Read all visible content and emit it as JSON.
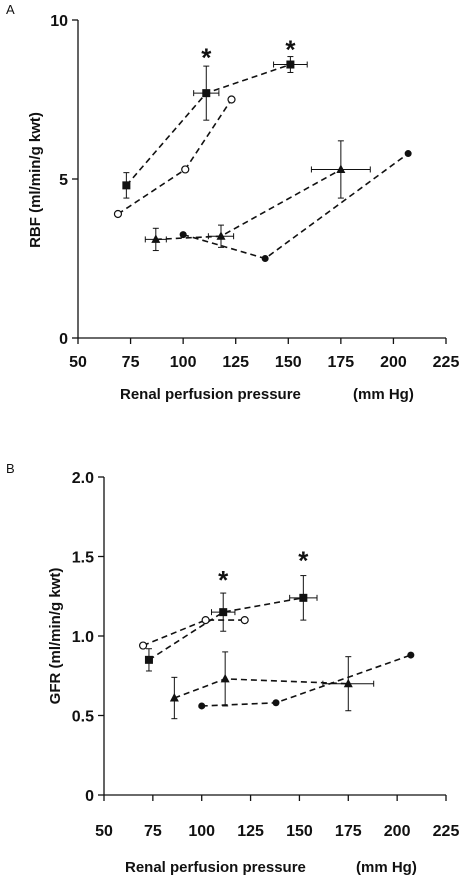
{
  "chart_data": [
    {
      "type": "scatter",
      "panel_label": "A",
      "ylabel": "RBF (ml/min/g kwt)",
      "xlabel": "Renal perfusion pressure",
      "xunit": "(mm Hg)",
      "xlim": [
        50,
        225
      ],
      "ylim": [
        0,
        10
      ],
      "x_ticks": [
        50,
        75,
        100,
        125,
        150,
        175,
        200,
        225
      ],
      "y_ticks": [
        0,
        5,
        10
      ],
      "grid": false,
      "legend": "none",
      "series": [
        {
          "marker": "square",
          "points": [
            {
              "x": 73,
              "y": 4.8,
              "yerr": 0.4
            },
            {
              "x": 111,
              "y": 7.7,
              "yerr": 0.85,
              "xerr": 6
            },
            {
              "x": 151,
              "y": 8.6,
              "yerr": 0.25,
              "xerr": 8
            }
          ]
        },
        {
          "marker": "open-circle",
          "points": [
            {
              "x": 69,
              "y": 3.9
            },
            {
              "x": 101,
              "y": 5.3
            },
            {
              "x": 123,
              "y": 7.5
            }
          ]
        },
        {
          "marker": "triangle",
          "points": [
            {
              "x": 87,
              "y": 3.1,
              "yerr": 0.35,
              "xerr": 5
            },
            {
              "x": 118,
              "y": 3.2,
              "yerr": 0.35,
              "xerr": 6
            },
            {
              "x": 175,
              "y": 5.3,
              "yerr": 0.9,
              "xerr": 14
            }
          ]
        },
        {
          "marker": "filled-circle",
          "points": [
            {
              "x": 100,
              "y": 3.25
            },
            {
              "x": 139,
              "y": 2.5
            },
            {
              "x": 207,
              "y": 5.8
            }
          ]
        }
      ],
      "annotations": [
        {
          "text": "*",
          "x": 111,
          "y": 8.85
        },
        {
          "text": "*",
          "x": 151,
          "y": 9.1
        }
      ]
    },
    {
      "type": "scatter",
      "panel_label": "B",
      "ylabel": "GFR (ml/min/g kwt)",
      "xlabel": "Renal perfusion pressure",
      "xunit": "(mm Hg)",
      "xlim": [
        50,
        225
      ],
      "ylim": [
        0,
        2.0
      ],
      "x_ticks": [
        50,
        75,
        100,
        125,
        150,
        175,
        200,
        225
      ],
      "y_ticks": [
        0,
        0.5,
        1.0,
        1.5,
        2.0
      ],
      "y_tick_labels": [
        "0",
        "0.5",
        "1.0",
        "1.5",
        "2.0"
      ],
      "grid": false,
      "legend": "none",
      "series": [
        {
          "marker": "square",
          "points": [
            {
              "x": 73,
              "y": 0.85,
              "yerr": 0.07
            },
            {
              "x": 111,
              "y": 1.15,
              "yerr": 0.12,
              "xerr": 6
            },
            {
              "x": 152,
              "y": 1.24,
              "yerr": 0.14,
              "xerr": 7
            }
          ]
        },
        {
          "marker": "open-circle",
          "points": [
            {
              "x": 70,
              "y": 0.94
            },
            {
              "x": 102,
              "y": 1.1
            },
            {
              "x": 122,
              "y": 1.1
            }
          ]
        },
        {
          "marker": "triangle",
          "points": [
            {
              "x": 86,
              "y": 0.61,
              "yerr": 0.13
            },
            {
              "x": 112,
              "y": 0.73,
              "yerr": 0.17
            },
            {
              "x": 175,
              "y": 0.7,
              "yerr": 0.17,
              "xerr": 13
            }
          ]
        },
        {
          "marker": "filled-circle",
          "points": [
            {
              "x": 100,
              "y": 0.56
            },
            {
              "x": 138,
              "y": 0.58
            },
            {
              "x": 207,
              "y": 0.88
            }
          ]
        }
      ],
      "annotations": [
        {
          "text": "*",
          "x": 111,
          "y": 1.36
        },
        {
          "text": "*",
          "x": 152,
          "y": 1.48
        }
      ]
    }
  ]
}
